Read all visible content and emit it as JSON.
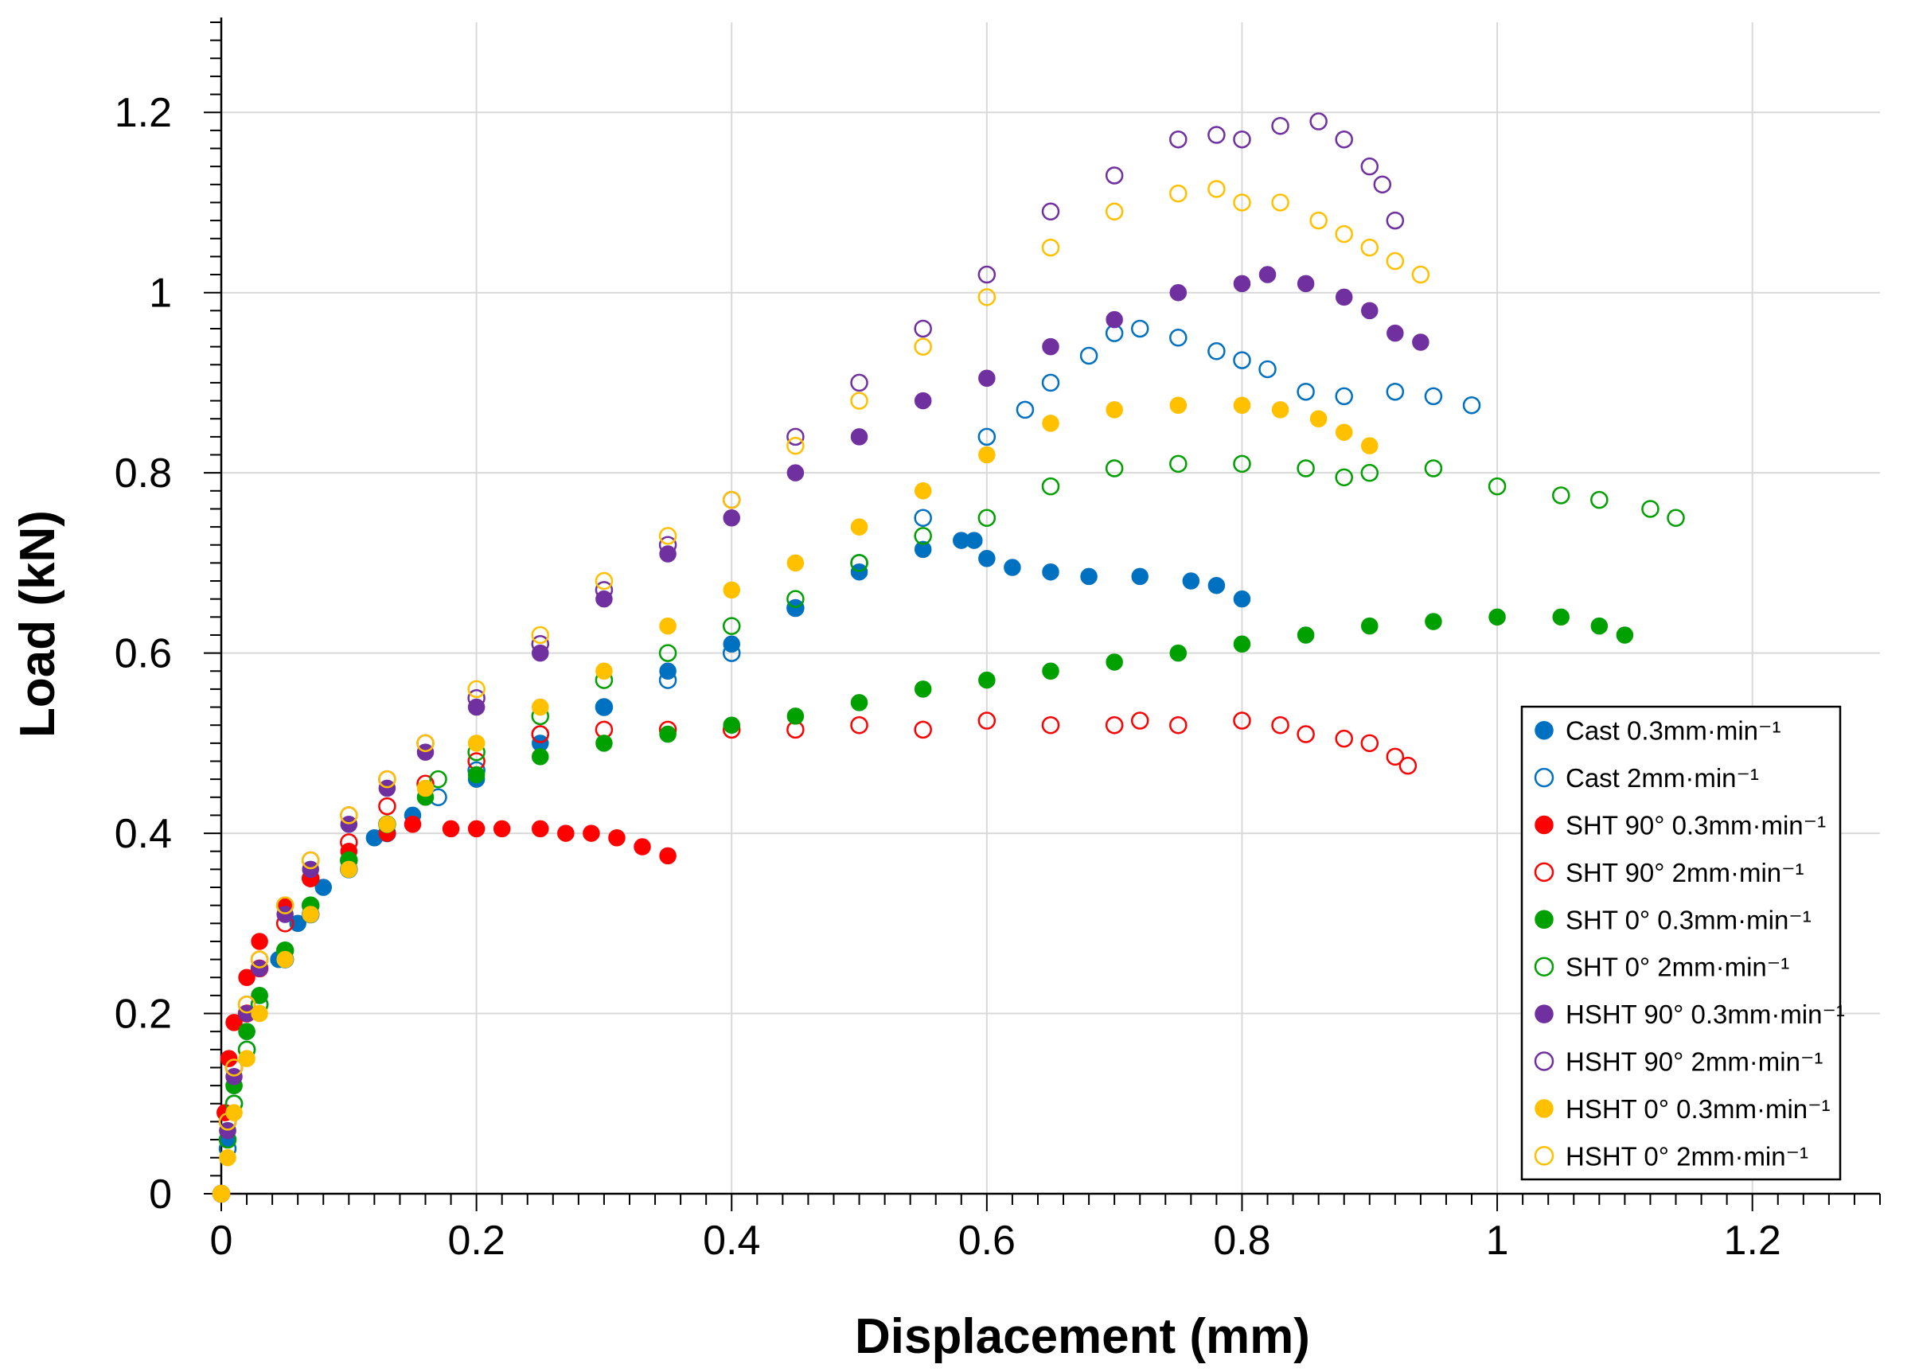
{
  "chart_data": {
    "type": "scatter",
    "title": "",
    "xlabel": "Displacement (mm)",
    "ylabel": "Load (kN)",
    "xlim": [
      0,
      1.3
    ],
    "ylim": [
      0,
      1.3
    ],
    "xticks": [
      0,
      0.2,
      0.4,
      0.6,
      0.8,
      1,
      1.2
    ],
    "xtick_labels": [
      "0",
      "0.2",
      "0.4",
      "0.6",
      "0.8",
      "1",
      "1.2"
    ],
    "yticks": [
      0,
      0.2,
      0.4,
      0.6,
      0.8,
      1,
      1.2
    ],
    "ytick_labels": [
      "0",
      "0.2",
      "0.4",
      "0.6",
      "0.8",
      "1",
      "1.2"
    ],
    "grid": true,
    "legend_position": "bottom-right",
    "series": [
      {
        "name": "Cast 0.3mm·min⁻¹",
        "color": "#0070C0",
        "marker": "filled-circle",
        "points": [
          [
            0,
            0
          ],
          [
            0.005,
            0.06
          ],
          [
            0.01,
            0.12
          ],
          [
            0.02,
            0.18
          ],
          [
            0.03,
            0.22
          ],
          [
            0.045,
            0.26
          ],
          [
            0.06,
            0.3
          ],
          [
            0.08,
            0.34
          ],
          [
            0.1,
            0.37
          ],
          [
            0.12,
            0.395
          ],
          [
            0.15,
            0.42
          ],
          [
            0.2,
            0.46
          ],
          [
            0.25,
            0.5
          ],
          [
            0.3,
            0.54
          ],
          [
            0.35,
            0.58
          ],
          [
            0.4,
            0.61
          ],
          [
            0.45,
            0.65
          ],
          [
            0.5,
            0.69
          ],
          [
            0.55,
            0.715
          ],
          [
            0.58,
            0.725
          ],
          [
            0.59,
            0.725
          ],
          [
            0.6,
            0.705
          ],
          [
            0.62,
            0.695
          ],
          [
            0.65,
            0.69
          ],
          [
            0.68,
            0.685
          ],
          [
            0.72,
            0.685
          ],
          [
            0.76,
            0.68
          ],
          [
            0.78,
            0.675
          ],
          [
            0.8,
            0.66
          ]
        ]
      },
      {
        "name": "Cast 2mm·min⁻¹",
        "color": "#0070C0",
        "marker": "open-circle",
        "points": [
          [
            0,
            0
          ],
          [
            0.005,
            0.05
          ],
          [
            0.01,
            0.1
          ],
          [
            0.02,
            0.16
          ],
          [
            0.03,
            0.21
          ],
          [
            0.05,
            0.26
          ],
          [
            0.07,
            0.31
          ],
          [
            0.1,
            0.36
          ],
          [
            0.13,
            0.4
          ],
          [
            0.17,
            0.44
          ],
          [
            0.2,
            0.47
          ],
          [
            0.25,
            0.51
          ],
          [
            0.3,
            0.54
          ],
          [
            0.35,
            0.57
          ],
          [
            0.4,
            0.6
          ],
          [
            0.45,
            0.65
          ],
          [
            0.5,
            0.7
          ],
          [
            0.55,
            0.75
          ],
          [
            0.6,
            0.84
          ],
          [
            0.63,
            0.87
          ],
          [
            0.65,
            0.9
          ],
          [
            0.68,
            0.93
          ],
          [
            0.7,
            0.955
          ],
          [
            0.72,
            0.96
          ],
          [
            0.75,
            0.95
          ],
          [
            0.78,
            0.935
          ],
          [
            0.8,
            0.925
          ],
          [
            0.82,
            0.915
          ],
          [
            0.85,
            0.89
          ],
          [
            0.88,
            0.885
          ],
          [
            0.92,
            0.89
          ],
          [
            0.95,
            0.885
          ],
          [
            0.98,
            0.875
          ]
        ]
      },
      {
        "name": "SHT 90° 0.3mm·min⁻¹",
        "color": "#FF0000",
        "marker": "filled-circle",
        "points": [
          [
            0,
            0
          ],
          [
            0.003,
            0.09
          ],
          [
            0.006,
            0.15
          ],
          [
            0.01,
            0.19
          ],
          [
            0.02,
            0.24
          ],
          [
            0.03,
            0.28
          ],
          [
            0.05,
            0.32
          ],
          [
            0.07,
            0.35
          ],
          [
            0.1,
            0.38
          ],
          [
            0.13,
            0.4
          ],
          [
            0.15,
            0.41
          ],
          [
            0.18,
            0.405
          ],
          [
            0.2,
            0.405
          ],
          [
            0.22,
            0.405
          ],
          [
            0.25,
            0.405
          ],
          [
            0.27,
            0.4
          ],
          [
            0.29,
            0.4
          ],
          [
            0.31,
            0.395
          ],
          [
            0.33,
            0.385
          ],
          [
            0.35,
            0.375
          ]
        ]
      },
      {
        "name": "SHT 90° 2mm·min⁻¹",
        "color": "#FF0000",
        "marker": "open-circle",
        "points": [
          [
            0,
            0
          ],
          [
            0.005,
            0.08
          ],
          [
            0.01,
            0.14
          ],
          [
            0.02,
            0.2
          ],
          [
            0.03,
            0.25
          ],
          [
            0.05,
            0.3
          ],
          [
            0.07,
            0.35
          ],
          [
            0.1,
            0.39
          ],
          [
            0.13,
            0.43
          ],
          [
            0.16,
            0.455
          ],
          [
            0.2,
            0.48
          ],
          [
            0.25,
            0.51
          ],
          [
            0.3,
            0.515
          ],
          [
            0.35,
            0.515
          ],
          [
            0.4,
            0.515
          ],
          [
            0.45,
            0.515
          ],
          [
            0.5,
            0.52
          ],
          [
            0.55,
            0.515
          ],
          [
            0.6,
            0.525
          ],
          [
            0.65,
            0.52
          ],
          [
            0.7,
            0.52
          ],
          [
            0.72,
            0.525
          ],
          [
            0.75,
            0.52
          ],
          [
            0.8,
            0.525
          ],
          [
            0.83,
            0.52
          ],
          [
            0.85,
            0.51
          ],
          [
            0.88,
            0.505
          ],
          [
            0.9,
            0.5
          ],
          [
            0.92,
            0.485
          ],
          [
            0.93,
            0.475
          ]
        ]
      },
      {
        "name": "SHT 0° 0.3mm·min⁻¹",
        "color": "#00A000",
        "marker": "filled-circle",
        "points": [
          [
            0,
            0
          ],
          [
            0.005,
            0.07
          ],
          [
            0.01,
            0.12
          ],
          [
            0.02,
            0.18
          ],
          [
            0.03,
            0.22
          ],
          [
            0.05,
            0.27
          ],
          [
            0.07,
            0.32
          ],
          [
            0.1,
            0.37
          ],
          [
            0.13,
            0.41
          ],
          [
            0.16,
            0.44
          ],
          [
            0.2,
            0.465
          ],
          [
            0.25,
            0.485
          ],
          [
            0.3,
            0.5
          ],
          [
            0.35,
            0.51
          ],
          [
            0.4,
            0.52
          ],
          [
            0.45,
            0.53
          ],
          [
            0.5,
            0.545
          ],
          [
            0.55,
            0.56
          ],
          [
            0.6,
            0.57
          ],
          [
            0.65,
            0.58
          ],
          [
            0.7,
            0.59
          ],
          [
            0.75,
            0.6
          ],
          [
            0.8,
            0.61
          ],
          [
            0.85,
            0.62
          ],
          [
            0.9,
            0.63
          ],
          [
            0.95,
            0.635
          ],
          [
            1,
            0.64
          ],
          [
            1.05,
            0.64
          ],
          [
            1.08,
            0.63
          ],
          [
            1.1,
            0.62
          ]
        ]
      },
      {
        "name": "SHT 0° 2mm·min⁻¹",
        "color": "#00A000",
        "marker": "open-circle",
        "points": [
          [
            0,
            0
          ],
          [
            0.005,
            0.06
          ],
          [
            0.01,
            0.1
          ],
          [
            0.02,
            0.16
          ],
          [
            0.03,
            0.21
          ],
          [
            0.05,
            0.27
          ],
          [
            0.07,
            0.32
          ],
          [
            0.1,
            0.37
          ],
          [
            0.13,
            0.41
          ],
          [
            0.17,
            0.46
          ],
          [
            0.2,
            0.49
          ],
          [
            0.25,
            0.53
          ],
          [
            0.3,
            0.57
          ],
          [
            0.35,
            0.6
          ],
          [
            0.4,
            0.63
          ],
          [
            0.45,
            0.66
          ],
          [
            0.5,
            0.7
          ],
          [
            0.55,
            0.73
          ],
          [
            0.6,
            0.75
          ],
          [
            0.65,
            0.785
          ],
          [
            0.7,
            0.805
          ],
          [
            0.75,
            0.81
          ],
          [
            0.8,
            0.81
          ],
          [
            0.85,
            0.805
          ],
          [
            0.88,
            0.795
          ],
          [
            0.9,
            0.8
          ],
          [
            0.95,
            0.805
          ],
          [
            1,
            0.785
          ],
          [
            1.05,
            0.775
          ],
          [
            1.08,
            0.77
          ],
          [
            1.12,
            0.76
          ],
          [
            1.14,
            0.75
          ]
        ]
      },
      {
        "name": "HSHT 90° 0.3mm·min⁻¹",
        "color": "#7030A0",
        "marker": "filled-circle",
        "points": [
          [
            0,
            0
          ],
          [
            0.005,
            0.07
          ],
          [
            0.01,
            0.13
          ],
          [
            0.02,
            0.2
          ],
          [
            0.03,
            0.25
          ],
          [
            0.05,
            0.31
          ],
          [
            0.07,
            0.36
          ],
          [
            0.1,
            0.41
          ],
          [
            0.13,
            0.45
          ],
          [
            0.16,
            0.49
          ],
          [
            0.2,
            0.54
          ],
          [
            0.25,
            0.6
          ],
          [
            0.3,
            0.66
          ],
          [
            0.35,
            0.71
          ],
          [
            0.4,
            0.75
          ],
          [
            0.45,
            0.8
          ],
          [
            0.5,
            0.84
          ],
          [
            0.55,
            0.88
          ],
          [
            0.6,
            0.905
          ],
          [
            0.65,
            0.94
          ],
          [
            0.7,
            0.97
          ],
          [
            0.75,
            1
          ],
          [
            0.8,
            1.01
          ],
          [
            0.82,
            1.02
          ],
          [
            0.85,
            1.01
          ],
          [
            0.88,
            0.995
          ],
          [
            0.9,
            0.98
          ],
          [
            0.92,
            0.955
          ],
          [
            0.94,
            0.945
          ]
        ]
      },
      {
        "name": "HSHT 90° 2mm·min⁻¹",
        "color": "#7030A0",
        "marker": "open-circle",
        "points": [
          [
            0,
            0
          ],
          [
            0.005,
            0.08
          ],
          [
            0.01,
            0.14
          ],
          [
            0.02,
            0.21
          ],
          [
            0.03,
            0.26
          ],
          [
            0.05,
            0.32
          ],
          [
            0.07,
            0.37
          ],
          [
            0.1,
            0.42
          ],
          [
            0.13,
            0.46
          ],
          [
            0.16,
            0.5
          ],
          [
            0.2,
            0.55
          ],
          [
            0.25,
            0.61
          ],
          [
            0.3,
            0.67
          ],
          [
            0.35,
            0.72
          ],
          [
            0.4,
            0.77
          ],
          [
            0.45,
            0.84
          ],
          [
            0.5,
            0.9
          ],
          [
            0.55,
            0.96
          ],
          [
            0.6,
            1.02
          ],
          [
            0.65,
            1.09
          ],
          [
            0.7,
            1.13
          ],
          [
            0.75,
            1.17
          ],
          [
            0.78,
            1.175
          ],
          [
            0.8,
            1.17
          ],
          [
            0.83,
            1.185
          ],
          [
            0.86,
            1.19
          ],
          [
            0.88,
            1.17
          ],
          [
            0.9,
            1.14
          ],
          [
            0.91,
            1.12
          ],
          [
            0.92,
            1.08
          ]
        ]
      },
      {
        "name": "HSHT 0° 0.3mm·min⁻¹",
        "color": "#FFC000",
        "marker": "filled-circle",
        "points": [
          [
            0,
            0
          ],
          [
            0.005,
            0.04
          ],
          [
            0.01,
            0.09
          ],
          [
            0.02,
            0.15
          ],
          [
            0.03,
            0.2
          ],
          [
            0.05,
            0.26
          ],
          [
            0.07,
            0.31
          ],
          [
            0.1,
            0.36
          ],
          [
            0.13,
            0.41
          ],
          [
            0.16,
            0.45
          ],
          [
            0.2,
            0.5
          ],
          [
            0.25,
            0.54
          ],
          [
            0.3,
            0.58
          ],
          [
            0.35,
            0.63
          ],
          [
            0.4,
            0.67
          ],
          [
            0.45,
            0.7
          ],
          [
            0.5,
            0.74
          ],
          [
            0.55,
            0.78
          ],
          [
            0.6,
            0.82
          ],
          [
            0.65,
            0.855
          ],
          [
            0.7,
            0.87
          ],
          [
            0.75,
            0.875
          ],
          [
            0.8,
            0.875
          ],
          [
            0.83,
            0.87
          ],
          [
            0.86,
            0.86
          ],
          [
            0.88,
            0.845
          ],
          [
            0.9,
            0.83
          ]
        ]
      },
      {
        "name": "HSHT 0° 2mm·min⁻¹",
        "color": "#FFC000",
        "marker": "open-circle",
        "points": [
          [
            0,
            0
          ],
          [
            0.005,
            0.08
          ],
          [
            0.01,
            0.14
          ],
          [
            0.02,
            0.21
          ],
          [
            0.03,
            0.26
          ],
          [
            0.05,
            0.32
          ],
          [
            0.07,
            0.37
          ],
          [
            0.1,
            0.42
          ],
          [
            0.13,
            0.46
          ],
          [
            0.16,
            0.5
          ],
          [
            0.2,
            0.56
          ],
          [
            0.25,
            0.62
          ],
          [
            0.3,
            0.68
          ],
          [
            0.35,
            0.73
          ],
          [
            0.4,
            0.77
          ],
          [
            0.45,
            0.83
          ],
          [
            0.5,
            0.88
          ],
          [
            0.55,
            0.94
          ],
          [
            0.6,
            0.995
          ],
          [
            0.65,
            1.05
          ],
          [
            0.7,
            1.09
          ],
          [
            0.75,
            1.11
          ],
          [
            0.78,
            1.115
          ],
          [
            0.8,
            1.1
          ],
          [
            0.83,
            1.1
          ],
          [
            0.86,
            1.08
          ],
          [
            0.88,
            1.065
          ],
          [
            0.9,
            1.05
          ],
          [
            0.92,
            1.035
          ],
          [
            0.94,
            1.02
          ]
        ]
      }
    ]
  }
}
